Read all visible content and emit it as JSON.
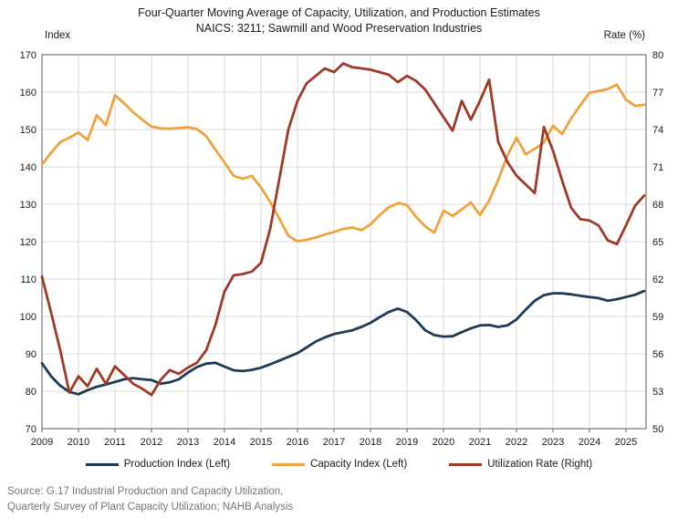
{
  "title": {
    "line1": "Four-Quarter Moving Average of Capacity, Utilization, and Production Estimates",
    "line2": "NAICS: 3211; Sawmill and Wood Preservation Industries"
  },
  "left_axis": {
    "label": "Index",
    "min": 70,
    "max": 170,
    "step": 10
  },
  "right_axis": {
    "label": "Rate (%)",
    "min": 50,
    "max": 80,
    "step": 3
  },
  "x_axis": {
    "years": [
      "2009",
      "2010",
      "2011",
      "2012",
      "2013",
      "2014",
      "2015",
      "2016",
      "2017",
      "2018",
      "2019",
      "2020",
      "2021",
      "2022",
      "2023",
      "2024",
      "2025"
    ]
  },
  "source": {
    "line1": "Source: G.17 Industrial Production and Capacity Utilization,",
    "line2": "Quarterly Survey of Plant Capacity Utilization; NAHB Analysis"
  },
  "colors": {
    "grid": "#d9d9d9",
    "frame": "#7f7f7f",
    "text": "#1a1a1a"
  },
  "chart_data": {
    "type": "line",
    "title": "Four-Quarter Moving Average of Capacity, Utilization, and Production Estimates — NAICS: 3211; Sawmill and Wood Preservation Industries",
    "xlabel": "",
    "ylabel_left": "Index",
    "ylabel_right": "Rate (%)",
    "left_ylim": [
      70,
      170
    ],
    "right_ylim": [
      50,
      80
    ],
    "x_range": [
      2009,
      2025.5
    ],
    "grid": true,
    "legend_position": "bottom",
    "x": [
      2009.0,
      2009.25,
      2009.5,
      2009.75,
      2010.0,
      2010.25,
      2010.5,
      2010.75,
      2011.0,
      2011.25,
      2011.5,
      2011.75,
      2012.0,
      2012.25,
      2012.5,
      2012.75,
      2013.0,
      2013.25,
      2013.5,
      2013.75,
      2014.0,
      2014.25,
      2014.5,
      2014.75,
      2015.0,
      2015.25,
      2015.5,
      2015.75,
      2016.0,
      2016.25,
      2016.5,
      2016.75,
      2017.0,
      2017.25,
      2017.5,
      2017.75,
      2018.0,
      2018.25,
      2018.5,
      2018.75,
      2019.0,
      2019.25,
      2019.5,
      2019.75,
      2020.0,
      2020.25,
      2020.5,
      2020.75,
      2021.0,
      2021.25,
      2021.5,
      2021.75,
      2022.0,
      2022.25,
      2022.5,
      2022.75,
      2023.0,
      2023.25,
      2023.5,
      2023.75,
      2024.0,
      2024.25,
      2024.5,
      2024.75,
      2025.0,
      2025.25,
      2025.5
    ],
    "series": [
      {
        "name": "Production Index (Left)",
        "axis": "left",
        "color": "#1F3A54",
        "values": [
          87.5,
          84.0,
          81.5,
          79.8,
          79.2,
          80.3,
          81.2,
          81.8,
          82.5,
          83.2,
          83.5,
          83.2,
          83.0,
          82.0,
          82.4,
          83.2,
          85.0,
          86.5,
          87.4,
          87.6,
          86.6,
          85.6,
          85.4,
          85.7,
          86.3,
          87.2,
          88.2,
          89.2,
          90.2,
          91.7,
          93.3,
          94.4,
          95.3,
          95.8,
          96.3,
          97.2,
          98.3,
          99.8,
          101.2,
          102.1,
          101.2,
          99.0,
          96.3,
          95.0,
          94.6,
          94.7,
          95.8,
          96.8,
          97.6,
          97.7,
          97.2,
          97.6,
          99.2,
          101.8,
          104.2,
          105.7,
          106.2,
          106.2,
          105.9,
          105.5,
          105.2,
          104.9,
          104.2,
          104.6,
          105.2,
          105.8,
          106.8
        ]
      },
      {
        "name": "Capacity Index (Left)",
        "axis": "left",
        "color": "#F0A23E",
        "values": [
          140.6,
          143.8,
          146.6,
          147.8,
          149.2,
          147.2,
          153.8,
          151.2,
          159.2,
          157.0,
          154.6,
          152.6,
          150.8,
          150.3,
          150.2,
          150.4,
          150.6,
          150.1,
          148.2,
          144.6,
          141.2,
          137.6,
          136.8,
          137.6,
          134.5,
          130.6,
          126.2,
          121.6,
          120.1,
          120.5,
          121.1,
          121.9,
          122.6,
          123.4,
          123.8,
          123.1,
          124.6,
          127.1,
          129.2,
          130.3,
          129.8,
          126.6,
          124.1,
          122.4,
          128.3,
          126.9,
          128.6,
          130.5,
          127.1,
          131.0,
          136.5,
          143.0,
          147.8,
          143.4,
          144.8,
          146.5,
          151.0,
          148.8,
          153.0,
          156.5,
          159.8,
          160.3,
          160.8,
          162.0,
          158.0,
          156.3,
          156.6
        ]
      },
      {
        "name": "Utilization Rate (Right)",
        "axis": "right",
        "color": "#9E3A28",
        "values": [
          62.2,
          59.3,
          56.3,
          52.9,
          54.2,
          53.4,
          54.8,
          53.6,
          55.0,
          54.3,
          53.6,
          53.2,
          52.7,
          53.9,
          54.7,
          54.4,
          54.9,
          55.3,
          56.3,
          58.3,
          61.0,
          62.3,
          62.4,
          62.6,
          63.3,
          66.0,
          70.0,
          74.0,
          76.3,
          77.7,
          78.3,
          78.9,
          78.6,
          79.3,
          79.0,
          78.9,
          78.8,
          78.6,
          78.4,
          77.8,
          78.3,
          77.9,
          77.2,
          76.1,
          75.0,
          73.9,
          76.3,
          74.8,
          76.3,
          78.0,
          73.0,
          71.4,
          70.3,
          69.6,
          68.9,
          74.2,
          72.3,
          69.9,
          67.7,
          66.8,
          66.7,
          66.3,
          65.1,
          64.8,
          66.3,
          67.9,
          68.7
        ]
      }
    ]
  }
}
